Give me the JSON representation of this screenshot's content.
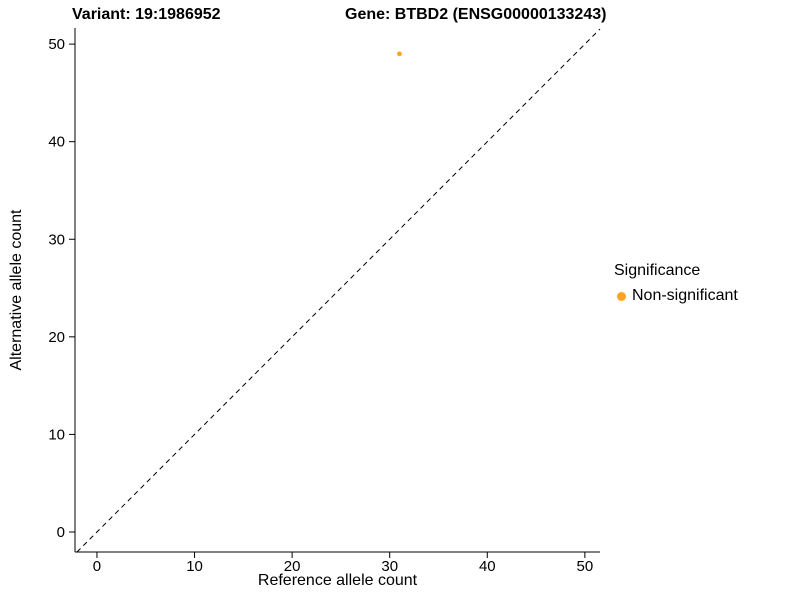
{
  "chart_data": {
    "type": "scatter",
    "title_left": "Variant: 19:1986952",
    "title_right": "Gene: BTBD2 (ENSG00000133243)",
    "xlabel": "Reference allele count",
    "ylabel": "Alternative allele count",
    "xlim": [
      -2.25,
      51.55
    ],
    "ylim": [
      -2.05,
      51.65
    ],
    "x_ticks": [
      0,
      10,
      20,
      30,
      40,
      50
    ],
    "y_ticks": [
      0,
      10,
      20,
      30,
      40,
      50
    ],
    "grid": false,
    "legend_position": "right",
    "reference_line": {
      "type": "identity",
      "style": "dashed",
      "color": "#000000"
    },
    "series": [
      {
        "name": "Non-significant",
        "color": "#FFA320",
        "points": [
          {
            "x": 31,
            "y": 49
          }
        ]
      }
    ],
    "legend": {
      "title": "Significance",
      "entries": [
        {
          "label": "Non-significant",
          "color": "#FFA320"
        }
      ]
    }
  }
}
